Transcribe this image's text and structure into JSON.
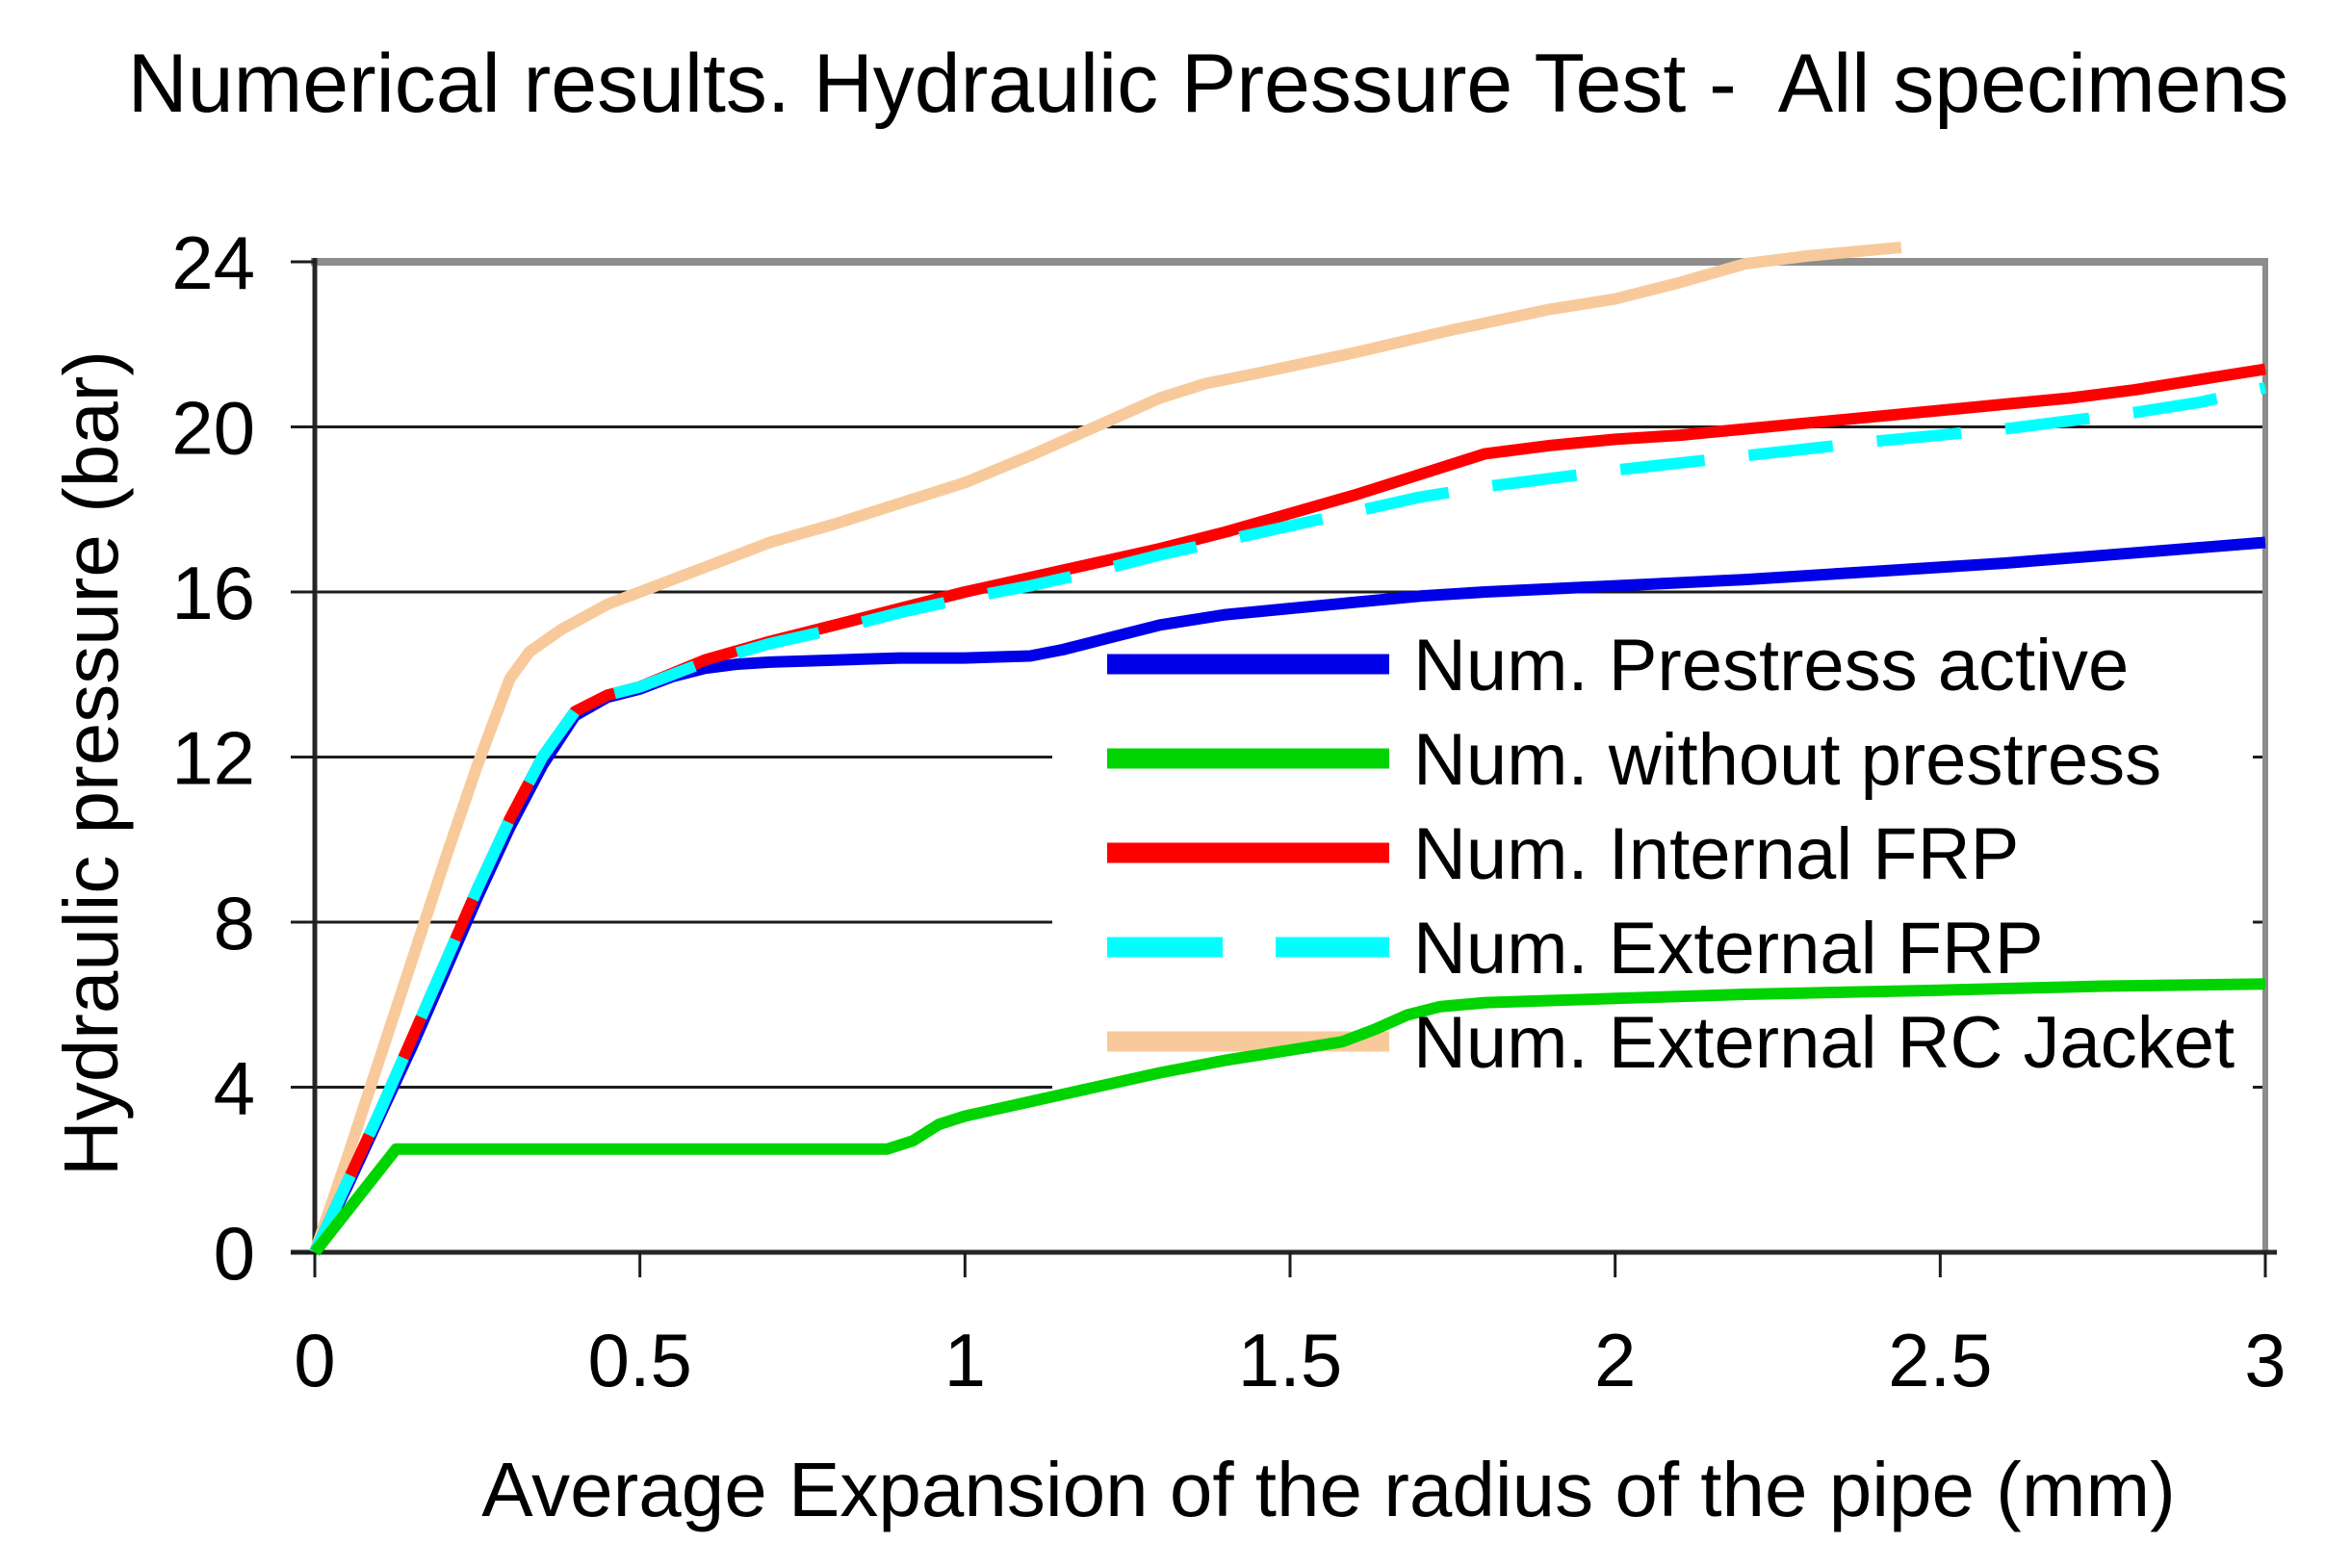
{
  "chart_data": {
    "type": "line",
    "title": "Numerical results. Hydraulic Pressure Test -  All specimens",
    "xlabel": "Average Expansion of the radius of the pipe (mm)",
    "ylabel": "Hydraulic pressure (bar)",
    "xlim": [
      0,
      3
    ],
    "ylim": [
      0,
      24
    ],
    "x_ticks": [
      0,
      0.5,
      1,
      1.5,
      2,
      2.5,
      3
    ],
    "x_tick_labels": [
      "0",
      "0.5",
      "1",
      "1.5",
      "2",
      "2.5",
      "3"
    ],
    "y_ticks": [
      0,
      4,
      8,
      12,
      16,
      20,
      24
    ],
    "y_tick_labels": [
      "0",
      "4",
      "8",
      "12",
      "16",
      "20",
      "24"
    ],
    "grid": "horizontal",
    "legend_position": "middle-right",
    "series": [
      {
        "name": "Num. Prestress active",
        "color": "#0000E8",
        "style": "solid",
        "points": [
          [
            0,
            0
          ],
          [
            0.05,
            1.6
          ],
          [
            0.1,
            3.3
          ],
          [
            0.15,
            5.0
          ],
          [
            0.2,
            6.8
          ],
          [
            0.25,
            8.6
          ],
          [
            0.3,
            10.3
          ],
          [
            0.35,
            11.8
          ],
          [
            0.4,
            13.0
          ],
          [
            0.45,
            13.45
          ],
          [
            0.5,
            13.65
          ],
          [
            0.55,
            13.95
          ],
          [
            0.6,
            14.15
          ],
          [
            0.65,
            14.25
          ],
          [
            0.7,
            14.3
          ],
          [
            0.8,
            14.35
          ],
          [
            0.9,
            14.4
          ],
          [
            1.0,
            14.4
          ],
          [
            1.1,
            14.45
          ],
          [
            1.15,
            14.6
          ],
          [
            1.2,
            14.8
          ],
          [
            1.3,
            15.2
          ],
          [
            1.4,
            15.45
          ],
          [
            1.5,
            15.6
          ],
          [
            1.6,
            15.75
          ],
          [
            1.7,
            15.9
          ],
          [
            1.8,
            16.0
          ],
          [
            2.0,
            16.15
          ],
          [
            2.2,
            16.3
          ],
          [
            2.4,
            16.5
          ],
          [
            2.6,
            16.7
          ],
          [
            2.8,
            16.95
          ],
          [
            3.0,
            17.2
          ]
        ]
      },
      {
        "name": "Num. without prestress",
        "color": "#00D400",
        "style": "solid",
        "points": [
          [
            0,
            0
          ],
          [
            0.06,
            1.2
          ],
          [
            0.125,
            2.5
          ],
          [
            0.3,
            2.5
          ],
          [
            0.5,
            2.5
          ],
          [
            0.7,
            2.5
          ],
          [
            0.88,
            2.5
          ],
          [
            0.92,
            2.7
          ],
          [
            0.96,
            3.1
          ],
          [
            1.0,
            3.3
          ],
          [
            1.1,
            3.65
          ],
          [
            1.2,
            4.0
          ],
          [
            1.3,
            4.35
          ],
          [
            1.4,
            4.65
          ],
          [
            1.5,
            4.9
          ],
          [
            1.58,
            5.1
          ],
          [
            1.63,
            5.4
          ],
          [
            1.68,
            5.75
          ],
          [
            1.73,
            5.95
          ],
          [
            1.8,
            6.05
          ],
          [
            2.0,
            6.15
          ],
          [
            2.2,
            6.25
          ],
          [
            2.5,
            6.35
          ],
          [
            2.75,
            6.45
          ],
          [
            3.0,
            6.5
          ]
        ]
      },
      {
        "name": "Num. Internal FRP",
        "color": "#FF0000",
        "style": "solid",
        "points": [
          [
            0,
            0
          ],
          [
            0.05,
            1.7
          ],
          [
            0.1,
            3.4
          ],
          [
            0.15,
            5.2
          ],
          [
            0.2,
            7.0
          ],
          [
            0.25,
            8.8
          ],
          [
            0.3,
            10.5
          ],
          [
            0.35,
            12.0
          ],
          [
            0.4,
            13.1
          ],
          [
            0.45,
            13.5
          ],
          [
            0.5,
            13.7
          ],
          [
            0.6,
            14.35
          ],
          [
            0.7,
            14.8
          ],
          [
            0.8,
            15.2
          ],
          [
            0.9,
            15.6
          ],
          [
            1.0,
            16.0
          ],
          [
            1.1,
            16.35
          ],
          [
            1.2,
            16.7
          ],
          [
            1.3,
            17.05
          ],
          [
            1.4,
            17.45
          ],
          [
            1.5,
            17.9
          ],
          [
            1.6,
            18.35
          ],
          [
            1.7,
            18.85
          ],
          [
            1.8,
            19.35
          ],
          [
            1.9,
            19.55
          ],
          [
            2.0,
            19.7
          ],
          [
            2.1,
            19.8
          ],
          [
            2.2,
            19.95
          ],
          [
            2.3,
            20.1
          ],
          [
            2.4,
            20.25
          ],
          [
            2.5,
            20.4
          ],
          [
            2.6,
            20.55
          ],
          [
            2.7,
            20.7
          ],
          [
            2.8,
            20.9
          ],
          [
            2.9,
            21.15
          ],
          [
            3.0,
            21.4
          ]
        ]
      },
      {
        "name": "Num. External FRP",
        "color": "#00FFFF",
        "style": "dashed",
        "points": [
          [
            0,
            0
          ],
          [
            0.05,
            1.7
          ],
          [
            0.1,
            3.4
          ],
          [
            0.15,
            5.2
          ],
          [
            0.2,
            7.0
          ],
          [
            0.25,
            8.8
          ],
          [
            0.3,
            10.5
          ],
          [
            0.35,
            12.0
          ],
          [
            0.4,
            13.1
          ],
          [
            0.45,
            13.5
          ],
          [
            0.5,
            13.7
          ],
          [
            0.6,
            14.3
          ],
          [
            0.7,
            14.75
          ],
          [
            0.8,
            15.1
          ],
          [
            0.9,
            15.5
          ],
          [
            1.0,
            15.85
          ],
          [
            1.1,
            16.15
          ],
          [
            1.2,
            16.5
          ],
          [
            1.3,
            16.9
          ],
          [
            1.4,
            17.25
          ],
          [
            1.5,
            17.6
          ],
          [
            1.6,
            17.95
          ],
          [
            1.7,
            18.3
          ],
          [
            1.8,
            18.55
          ],
          [
            1.9,
            18.75
          ],
          [
            2.0,
            18.95
          ],
          [
            2.2,
            19.3
          ],
          [
            2.4,
            19.65
          ],
          [
            2.6,
            19.95
          ],
          [
            2.8,
            20.35
          ],
          [
            2.9,
            20.6
          ],
          [
            3.0,
            20.95
          ]
        ]
      },
      {
        "name": "Num. External RC Jacket",
        "color": "#F8CA9B",
        "style": "solid",
        "points": [
          [
            0,
            0
          ],
          [
            0.05,
            2.3
          ],
          [
            0.1,
            4.7
          ],
          [
            0.15,
            7.1
          ],
          [
            0.2,
            9.5
          ],
          [
            0.25,
            11.8
          ],
          [
            0.3,
            13.9
          ],
          [
            0.33,
            14.55
          ],
          [
            0.38,
            15.1
          ],
          [
            0.45,
            15.7
          ],
          [
            0.5,
            16.0
          ],
          [
            0.6,
            16.6
          ],
          [
            0.7,
            17.2
          ],
          [
            0.8,
            17.65
          ],
          [
            0.9,
            18.15
          ],
          [
            1.0,
            18.65
          ],
          [
            1.1,
            19.3
          ],
          [
            1.2,
            20.0
          ],
          [
            1.3,
            20.7
          ],
          [
            1.37,
            21.05
          ],
          [
            1.45,
            21.3
          ],
          [
            1.6,
            21.8
          ],
          [
            1.75,
            22.35
          ],
          [
            1.9,
            22.85
          ],
          [
            2.0,
            23.1
          ],
          [
            2.1,
            23.5
          ],
          [
            2.2,
            23.95
          ],
          [
            2.3,
            24.15
          ],
          [
            2.44,
            24.35
          ]
        ]
      }
    ]
  },
  "colors": {
    "background": "#FFFFFF",
    "gridline": "#1C1C1C",
    "axis": "#262626",
    "border": "#8C8C8C",
    "text": "#000000",
    "legend_background": "#FFFFFF"
  }
}
